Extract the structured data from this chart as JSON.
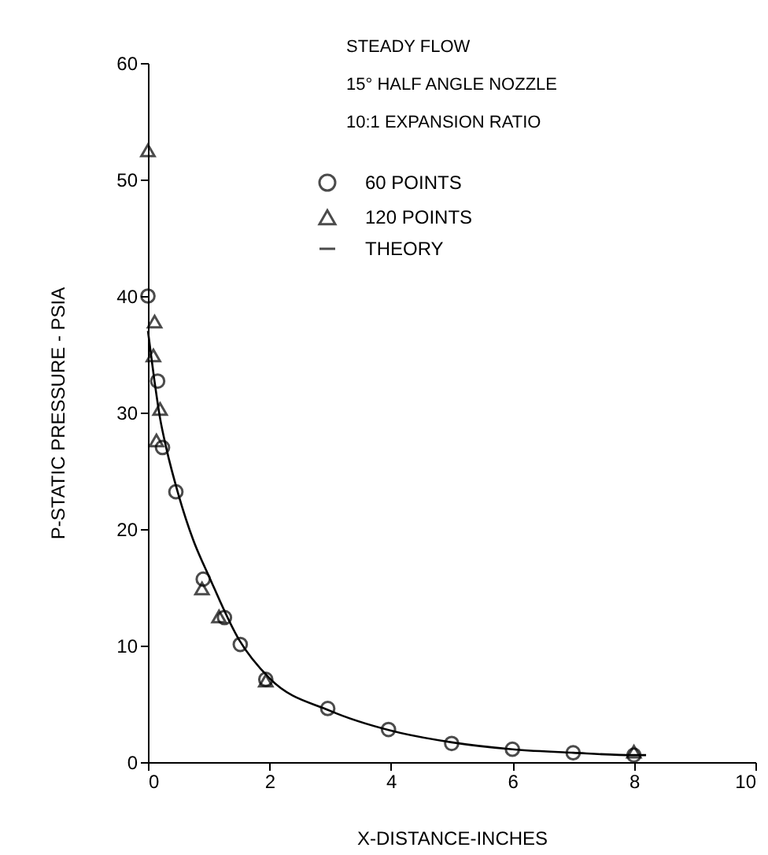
{
  "chart_data": {
    "type": "scatter",
    "xlabel": "X-DISTANCE-INCHES",
    "ylabel": "P-STATIC PRESSURE - PSIA",
    "annotations": [
      "STEADY FLOW",
      "15° HALF ANGLE NOZZLE",
      "10:1 EXPANSION RATIO"
    ],
    "xlim": [
      0,
      10
    ],
    "xticks": [
      0,
      2,
      4,
      6,
      8,
      10
    ],
    "ylim": [
      0,
      60
    ],
    "yticks": [
      0,
      10,
      20,
      30,
      40,
      50,
      60
    ],
    "grid": false,
    "legend": "top",
    "series": [
      {
        "name": "60 POINTS",
        "marker": "circle",
        "color": "#000000",
        "x": [
          0,
          0.16,
          0.24,
          0.46,
          0.91,
          1.26,
          1.52,
          1.94,
          2.96,
          3.96,
          5,
          6,
          7,
          8
        ],
        "values": [
          40,
          32.7,
          27,
          23.2,
          15.7,
          12.4,
          10.1,
          7.1,
          4.6,
          2.8,
          1.6,
          1.1,
          0.8,
          0.6
        ]
      },
      {
        "name": "120 POINTS",
        "marker": "triangle",
        "color": "#000000",
        "x": [
          0,
          0.11,
          0.09,
          0.2,
          0.14,
          0.89,
          1.17,
          1.94,
          8
        ],
        "values": [
          52.5,
          37.8,
          34.9,
          30.3,
          27.6,
          14.9,
          12.5,
          7,
          0.9
        ]
      },
      {
        "name": "THEORY",
        "type": "line",
        "marker": "none",
        "color": "#000000",
        "x": [
          0,
          0.1,
          0.2,
          0.3,
          0.5,
          0.75,
          1,
          1.5,
          2,
          3,
          4,
          5,
          6,
          7,
          8,
          8.2
        ],
        "values": [
          37,
          33,
          29.5,
          27,
          23,
          19,
          16,
          10.5,
          7.2,
          4.4,
          2.7,
          1.7,
          1.1,
          0.8,
          0.6,
          0.6
        ]
      }
    ]
  }
}
